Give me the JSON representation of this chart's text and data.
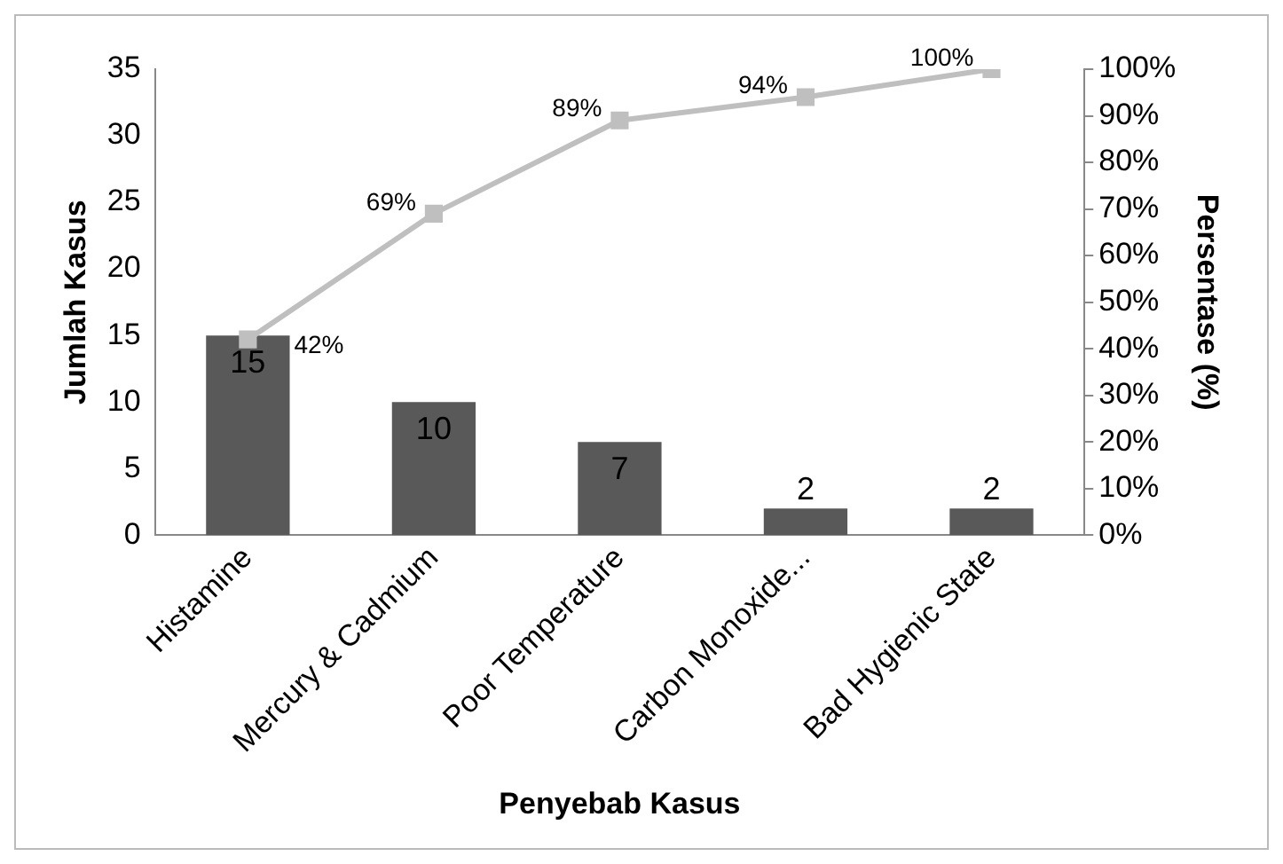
{
  "chart_data": {
    "type": "bar",
    "xlabel": "Penyebab Kasus",
    "ylabel": "Jumlah Kasus",
    "y2label": "Persentase (%)",
    "categories": [
      "Histamine",
      "Mercury & Cadmium",
      "Poor Temperature",
      "Carbon Monoxide...",
      "Bad Hygienic State"
    ],
    "series": [
      {
        "color": "#595959",
        "values": [
          15,
          10,
          7,
          2,
          2
        ],
        "value_labels": [
          "15",
          "10",
          "7",
          "2",
          "2"
        ]
      },
      {
        "type": "line",
        "axis": "y2",
        "color": "#bfbfbf",
        "marker": "square",
        "values": [
          42,
          69,
          89,
          94,
          100
        ],
        "value_labels": [
          "42%",
          "69%",
          "89%",
          "94%",
          "100%"
        ]
      }
    ],
    "ylim": [
      0,
      35
    ],
    "yticks": [
      0,
      5,
      10,
      15,
      20,
      25,
      30,
      35
    ],
    "y2lim": [
      0,
      100
    ],
    "y2ticks": [
      {
        "value": 0,
        "label": "0%"
      },
      {
        "value": 10,
        "label": "10%"
      },
      {
        "value": 20,
        "label": "20%"
      },
      {
        "value": 30,
        "label": "30%"
      },
      {
        "value": 40,
        "label": "40%"
      },
      {
        "value": 50,
        "label": "50%"
      },
      {
        "value": 60,
        "label": "60%"
      },
      {
        "value": 70,
        "label": "70%"
      },
      {
        "value": 80,
        "label": "80%"
      },
      {
        "value": 90,
        "label": "90%"
      },
      {
        "value": 100,
        "label": "100%"
      }
    ],
    "grid": false,
    "legend": false
  }
}
